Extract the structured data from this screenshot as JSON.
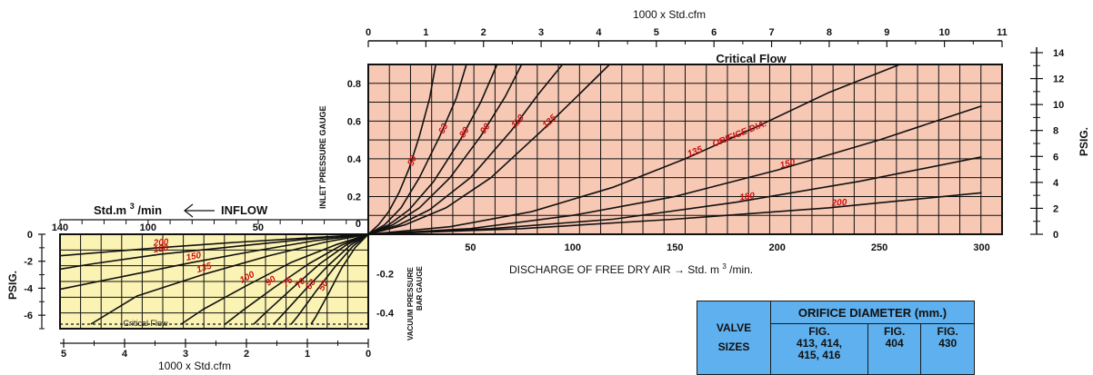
{
  "chart_data": [
    {
      "type": "line",
      "name": "discharge",
      "x_top_label": "1000 x Std.cfm",
      "x_top_ticks": [
        "0",
        "1",
        "2",
        "3",
        "4",
        "5",
        "6",
        "7",
        "8",
        "9",
        "10",
        "11"
      ],
      "x_top_range": [
        0,
        11
      ],
      "xlabel": "DISCHARGE  OF FREE DRY AIR",
      "xlabel_unit": "Std. m",
      "xlabel_sup": "3",
      "xlabel_suffix": "/min.",
      "x_ticks": [
        "50",
        "100",
        "150",
        "200",
        "250",
        "300"
      ],
      "x_range": [
        0,
        310
      ],
      "ylabel_left": "INLET PRESSURE  GAUGE",
      "y_left_ticks": [
        "0",
        "0.2",
        "0.4",
        "0.6",
        "0.8"
      ],
      "y_left_range": [
        0,
        0.9
      ],
      "ylabel_right": "PSIG.",
      "y_right_ticks": [
        "0",
        "2",
        "4",
        "6",
        "8",
        "10",
        "12",
        "14"
      ],
      "y_right_range": [
        0,
        14
      ],
      "limit_label": "Critical Flow",
      "limit_y": 0.9,
      "orifice_label": "ORIFICE DIA.",
      "series": [
        {
          "name": "50",
          "points": [
            [
              0,
              0
            ],
            [
              5,
              0.05
            ],
            [
              10,
              0.12
            ],
            [
              15,
              0.22
            ],
            [
              20,
              0.35
            ],
            [
              25,
              0.52
            ],
            [
              30,
              0.72
            ],
            [
              33,
              0.9
            ]
          ]
        },
        {
          "name": "63",
          "points": [
            [
              0,
              0
            ],
            [
              8,
              0.05
            ],
            [
              16,
              0.14
            ],
            [
              25,
              0.3
            ],
            [
              35,
              0.52
            ],
            [
              43,
              0.72
            ],
            [
              48,
              0.9
            ]
          ]
        },
        {
          "name": "80",
          "points": [
            [
              0,
              0
            ],
            [
              10,
              0.05
            ],
            [
              20,
              0.13
            ],
            [
              32,
              0.28
            ],
            [
              45,
              0.5
            ],
            [
              55,
              0.7
            ],
            [
              63,
              0.9
            ]
          ]
        },
        {
          "name": "90",
          "points": [
            [
              0,
              0
            ],
            [
              12,
              0.05
            ],
            [
              25,
              0.14
            ],
            [
              40,
              0.3
            ],
            [
              55,
              0.52
            ],
            [
              67,
              0.73
            ],
            [
              75,
              0.9
            ]
          ]
        },
        {
          "name": "110",
          "points": [
            [
              0,
              0
            ],
            [
              15,
              0.05
            ],
            [
              30,
              0.13
            ],
            [
              50,
              0.3
            ],
            [
              70,
              0.55
            ],
            [
              83,
              0.74
            ],
            [
              95,
              0.9
            ]
          ]
        },
        {
          "name": "125",
          "points": [
            [
              0,
              0
            ],
            [
              18,
              0.05
            ],
            [
              38,
              0.14
            ],
            [
              60,
              0.3
            ],
            [
              85,
              0.55
            ],
            [
              103,
              0.74
            ],
            [
              118,
              0.9
            ]
          ]
        },
        {
          "name": "135",
          "points": [
            [
              0,
              0
            ],
            [
              40,
              0.04
            ],
            [
              80,
              0.12
            ],
            [
              120,
              0.25
            ],
            [
              155,
              0.4
            ],
            [
              190,
              0.57
            ],
            [
              225,
              0.75
            ],
            [
              260,
              0.9
            ]
          ]
        },
        {
          "name": "150",
          "points": [
            [
              0,
              0
            ],
            [
              50,
              0.03
            ],
            [
              100,
              0.1
            ],
            [
              150,
              0.2
            ],
            [
              200,
              0.34
            ],
            [
              250,
              0.5
            ],
            [
              300,
              0.68
            ]
          ]
        },
        {
          "name": "180",
          "points": [
            [
              0,
              0
            ],
            [
              60,
              0.03
            ],
            [
              120,
              0.08
            ],
            [
              180,
              0.17
            ],
            [
              240,
              0.28
            ],
            [
              300,
              0.41
            ]
          ]
        },
        {
          "name": "200",
          "points": [
            [
              0,
              0
            ],
            [
              75,
              0.03
            ],
            [
              150,
              0.08
            ],
            [
              225,
              0.14
            ],
            [
              300,
              0.22
            ]
          ]
        }
      ]
    },
    {
      "type": "line",
      "name": "inflow",
      "x_top_label_prefix": "Std.m",
      "x_top_label_sup": "3",
      "x_top_label_suffix": "/min",
      "x_top_arrow_label": "INFLOW",
      "x_top_ticks": [
        "140",
        "100",
        "50"
      ],
      "x_top_range": [
        0,
        140
      ],
      "x_bottom_label": "1000 x Std.cfm",
      "x_bottom_ticks": [
        "5",
        "4",
        "3",
        "2",
        "1",
        "0"
      ],
      "x_bottom_range": [
        0,
        5
      ],
      "ylabel_left": "PSIG.",
      "y_left_ticks": [
        "0",
        "-2",
        "-4",
        "-6"
      ],
      "y_left_range": [
        -7,
        0
      ],
      "ylabel_right_lines": [
        "VACUUM PRESSURE",
        "BAR GAUGE"
      ],
      "y_right_ticks": [
        "-0.2",
        "-0.4"
      ],
      "y_right_range": [
        -0.48,
        0
      ],
      "limit_label": "Critical Flow",
      "limit_y": -6.7,
      "series": [
        {
          "name": "200",
          "points": [
            [
              0,
              0
            ],
            [
              30,
              -0.3
            ],
            [
              60,
              -0.6
            ],
            [
              95,
              -1.0
            ],
            [
              125,
              -1.4
            ],
            [
              140,
              -1.6
            ]
          ]
        },
        {
          "name": "180",
          "points": [
            [
              0,
              0
            ],
            [
              30,
              -0.4
            ],
            [
              60,
              -0.9
            ],
            [
              95,
              -1.5
            ],
            [
              125,
              -2.2
            ],
            [
              140,
              -2.6
            ]
          ]
        },
        {
          "name": "150",
          "points": [
            [
              0,
              0
            ],
            [
              25,
              -0.5
            ],
            [
              50,
              -1.2
            ],
            [
              80,
              -2.1
            ],
            [
              110,
              -3.1
            ],
            [
              140,
              -4.1
            ]
          ]
        },
        {
          "name": "135",
          "points": [
            [
              0,
              0
            ],
            [
              20,
              -0.6
            ],
            [
              45,
              -1.6
            ],
            [
              75,
              -3.0
            ],
            [
              105,
              -4.6
            ],
            [
              126,
              -6.7
            ]
          ]
        },
        {
          "name": "100",
          "points": [
            [
              0,
              0
            ],
            [
              15,
              -0.8
            ],
            [
              35,
              -2.1
            ],
            [
              55,
              -3.8
            ],
            [
              75,
              -5.6
            ],
            [
              85,
              -6.7
            ]
          ]
        },
        {
          "name": "90",
          "points": [
            [
              0,
              0
            ],
            [
              12,
              -0.8
            ],
            [
              27,
              -2.2
            ],
            [
              43,
              -4.0
            ],
            [
              58,
              -5.8
            ],
            [
              65,
              -6.7
            ]
          ]
        },
        {
          "name": "75",
          "points": [
            [
              0,
              0
            ],
            [
              10,
              -0.8
            ],
            [
              22,
              -2.2
            ],
            [
              35,
              -4.1
            ],
            [
              47,
              -5.9
            ],
            [
              52,
              -6.7
            ]
          ]
        },
        {
          "name": "70",
          "points": [
            [
              0,
              0
            ],
            [
              8,
              -0.8
            ],
            [
              18,
              -2.3
            ],
            [
              29,
              -4.2
            ],
            [
              39,
              -6.0
            ],
            [
              43,
              -6.7
            ]
          ]
        },
        {
          "name": "63",
          "points": [
            [
              0,
              0
            ],
            [
              7,
              -0.9
            ],
            [
              15,
              -2.4
            ],
            [
              24,
              -4.3
            ],
            [
              32,
              -6.1
            ],
            [
              35,
              -6.7
            ]
          ]
        },
        {
          "name": "50",
          "points": [
            [
              0,
              0
            ],
            [
              6,
              -1.0
            ],
            [
              12,
              -2.5
            ],
            [
              18,
              -4.4
            ],
            [
              24,
              -6.2
            ],
            [
              26,
              -6.7
            ]
          ]
        }
      ]
    }
  ],
  "table": {
    "valve_label_1": "VALVE",
    "valve_label_2": "SIZES",
    "orifice_header": "ORIFICE DIAMETER (mm.)",
    "fig_cols": [
      [
        "FIG.",
        "413, 414,",
        "415, 416"
      ],
      [
        "FIG.",
        "404"
      ],
      [
        "FIG.",
        "430"
      ]
    ]
  },
  "colors": {
    "discharge_fill": "#f7c8b4",
    "inflow_fill": "#fbf3b4",
    "curve": "#111111",
    "curve_label": "#cc1111",
    "table_bg": "#5fb0ee"
  }
}
